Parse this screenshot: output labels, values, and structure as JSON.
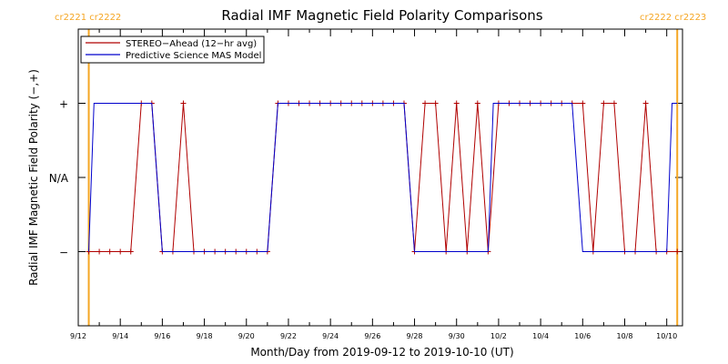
{
  "chart_data": {
    "type": "line",
    "title": "Radial IMF Magnetic Field Polarity Comparisons",
    "xlabel": "Month/Day from 2019-09-12 to 2019-10-10 (UT)",
    "ylabel": "Radial IMF Magnetic Field Polarity (−,+)",
    "x_unit": "date (UT)",
    "xlim": [
      "2019-09-12T00:00",
      "2019-10-10T18:00"
    ],
    "ylim": [
      -2,
      2
    ],
    "x_ticks": [
      "9/12",
      "9/14",
      "9/16",
      "9/18",
      "9/20",
      "9/22",
      "9/24",
      "9/26",
      "9/28",
      "9/30",
      "10/2",
      "10/4",
      "10/6",
      "10/8",
      "10/10"
    ],
    "y_ticks": [
      {
        "value": 1,
        "label": "+"
      },
      {
        "value": 0,
        "label": "N/A"
      },
      {
        "value": -1,
        "label": "−"
      }
    ],
    "grid": false,
    "legend_position": "top-left",
    "carrington_markers": [
      {
        "x": "2019-09-12T12:00",
        "label": "cr2221 cr2222",
        "color": "#f5a623"
      },
      {
        "x": "2019-10-10T12:00",
        "label": "cr2222 cr2223",
        "color": "#f5a623"
      }
    ],
    "series": [
      {
        "name": "STEREO−Ahead (12−hr avg)",
        "color": "#b00000",
        "marker": "+",
        "points": [
          [
            "2019-09-12T12:00",
            -1
          ],
          [
            "2019-09-13T00:00",
            -1
          ],
          [
            "2019-09-13T12:00",
            -1
          ],
          [
            "2019-09-14T00:00",
            -1
          ],
          [
            "2019-09-14T12:00",
            -1
          ],
          [
            "2019-09-15T00:00",
            1
          ],
          [
            "2019-09-15T12:00",
            1
          ],
          [
            "2019-09-16T00:00",
            -1
          ],
          [
            "2019-09-16T12:00",
            -1
          ],
          [
            "2019-09-17T00:00",
            1
          ],
          [
            "2019-09-17T12:00",
            -1
          ],
          [
            "2019-09-18T00:00",
            -1
          ],
          [
            "2019-09-18T12:00",
            -1
          ],
          [
            "2019-09-19T00:00",
            -1
          ],
          [
            "2019-09-19T12:00",
            -1
          ],
          [
            "2019-09-20T00:00",
            -1
          ],
          [
            "2019-09-20T12:00",
            -1
          ],
          [
            "2019-09-21T00:00",
            -1
          ],
          [
            "2019-09-21T12:00",
            1
          ],
          [
            "2019-09-22T00:00",
            1
          ],
          [
            "2019-09-22T12:00",
            1
          ],
          [
            "2019-09-23T00:00",
            1
          ],
          [
            "2019-09-23T12:00",
            1
          ],
          [
            "2019-09-24T00:00",
            1
          ],
          [
            "2019-09-24T12:00",
            1
          ],
          [
            "2019-09-25T00:00",
            1
          ],
          [
            "2019-09-25T12:00",
            1
          ],
          [
            "2019-09-26T00:00",
            1
          ],
          [
            "2019-09-26T12:00",
            1
          ],
          [
            "2019-09-27T00:00",
            1
          ],
          [
            "2019-09-27T12:00",
            1
          ],
          [
            "2019-09-28T00:00",
            -1
          ],
          [
            "2019-09-28T12:00",
            1
          ],
          [
            "2019-09-29T00:00",
            1
          ],
          [
            "2019-09-29T12:00",
            -1
          ],
          [
            "2019-09-30T00:00",
            1
          ],
          [
            "2019-09-30T12:00",
            -1
          ],
          [
            "2019-10-01T00:00",
            1
          ],
          [
            "2019-10-01T12:00",
            -1
          ],
          [
            "2019-10-02T00:00",
            1
          ],
          [
            "2019-10-02T12:00",
            1
          ],
          [
            "2019-10-03T00:00",
            1
          ],
          [
            "2019-10-03T12:00",
            1
          ],
          [
            "2019-10-04T00:00",
            1
          ],
          [
            "2019-10-04T12:00",
            1
          ],
          [
            "2019-10-05T00:00",
            1
          ],
          [
            "2019-10-05T12:00",
            1
          ],
          [
            "2019-10-06T00:00",
            1
          ],
          [
            "2019-10-06T12:00",
            -1
          ],
          [
            "2019-10-07T00:00",
            1
          ],
          [
            "2019-10-07T12:00",
            1
          ],
          [
            "2019-10-08T00:00",
            -1
          ],
          [
            "2019-10-08T12:00",
            -1
          ],
          [
            "2019-10-09T00:00",
            1
          ],
          [
            "2019-10-09T12:00",
            -1
          ],
          [
            "2019-10-10T00:00",
            -1
          ],
          [
            "2019-10-10T12:00",
            -1
          ]
        ]
      },
      {
        "name": "Predictive Science MAS Model",
        "color": "#0000cc",
        "marker": "none",
        "points": [
          [
            "2019-09-12T12:00",
            -1
          ],
          [
            "2019-09-12T18:00",
            1
          ],
          [
            "2019-09-15T12:00",
            1
          ],
          [
            "2019-09-16T00:00",
            -1
          ],
          [
            "2019-09-21T00:00",
            -1
          ],
          [
            "2019-09-21T12:00",
            1
          ],
          [
            "2019-09-27T12:00",
            1
          ],
          [
            "2019-09-28T00:00",
            -1
          ],
          [
            "2019-10-01T12:00",
            -1
          ],
          [
            "2019-10-01T18:00",
            1
          ],
          [
            "2019-10-05T12:00",
            1
          ],
          [
            "2019-10-06T00:00",
            -1
          ],
          [
            "2019-10-10T00:00",
            -1
          ],
          [
            "2019-10-10T06:00",
            1
          ],
          [
            "2019-10-10T12:00",
            1
          ]
        ]
      }
    ]
  }
}
